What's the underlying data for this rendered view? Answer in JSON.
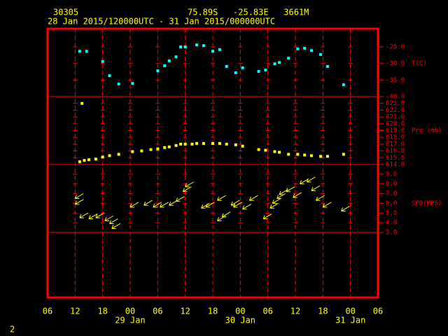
{
  "header": {
    "station": "30305",
    "location": "75.89S   -25.83E   3661M",
    "period": "28 Jan 2015/120000UTC - 31 Jan 2015/000000UTC"
  },
  "page_number": "2",
  "chart_data": [
    {
      "type": "scatter",
      "marker": "square",
      "axis_label": "T(C)",
      "color": "#00ffff",
      "x": [
        7,
        8.5,
        12,
        13.5,
        15.5,
        18.5,
        24,
        25.5,
        26.5,
        28,
        29,
        30,
        32.5,
        34,
        36,
        37.5,
        39,
        41,
        42.5,
        46,
        47.5,
        49.5,
        50.5,
        52.5,
        54.5,
        56,
        57.5,
        59.5,
        61,
        64.5
      ],
      "values": [
        -26.3,
        -26.3,
        -29.4,
        -33.7,
        -36.2,
        -36.0,
        -32.2,
        -30.7,
        -29.2,
        -28.0,
        -25.0,
        -25.0,
        -24.4,
        -24.6,
        -26.3,
        -25.8,
        -30.9,
        -32.8,
        -31.3,
        -32.4,
        -32.0,
        -30.1,
        -29.7,
        -28.4,
        -25.6,
        -25.4,
        -26.1,
        -27.3,
        -30.9,
        -36.4
      ],
      "ylim": [
        -40,
        -19.5
      ],
      "yticks": [
        {
          "value": -25,
          "label": "-25.0"
        },
        {
          "value": -30,
          "label": "-30.0"
        },
        {
          "value": -35,
          "label": "-35.0"
        },
        {
          "value": -40,
          "label": "-40.0"
        }
      ]
    },
    {
      "type": "scatter",
      "marker": "square",
      "axis_label": "Pre (mb)",
      "color": "#ffff00",
      "x": [
        7.5,
        7,
        8,
        9,
        10.5,
        12,
        13.5,
        15.5,
        18.5,
        20.5,
        22.5,
        24,
        25.5,
        26.5,
        28,
        29,
        30,
        31.5,
        32.5,
        34,
        36,
        37.5,
        39,
        41,
        42.5,
        46,
        47.5,
        49.5,
        50.5,
        52.5,
        54.5,
        56,
        57.5,
        59.5,
        61,
        64.5
      ],
      "values": [
        623.0,
        614.4,
        614.6,
        614.7,
        614.8,
        615.1,
        615.3,
        615.5,
        615.9,
        616.0,
        616.2,
        616.3,
        616.5,
        616.6,
        616.8,
        617.0,
        617.0,
        617.0,
        617.1,
        617.1,
        617.1,
        617.1,
        617.0,
        616.9,
        616.7,
        616.2,
        616.1,
        615.9,
        615.8,
        615.5,
        615.5,
        615.4,
        615.3,
        615.2,
        615.2,
        615.5
      ],
      "ylim": [
        614,
        624
      ],
      "yticks": [
        {
          "value": 623,
          "label": "623.0"
        },
        {
          "value": 622,
          "label": "622.0"
        },
        {
          "value": 621,
          "label": "621.0"
        },
        {
          "value": 620,
          "label": "620.0"
        },
        {
          "value": 619,
          "label": "619.0"
        },
        {
          "value": 618,
          "label": "618.0"
        },
        {
          "value": 617,
          "label": "617.0"
        },
        {
          "value": 616,
          "label": "616.0"
        },
        {
          "value": 615,
          "label": "615.0"
        },
        {
          "value": 614,
          "label": "614.0"
        }
      ]
    },
    {
      "type": "scatter",
      "marker": "arrow",
      "axis_label": "SPD(MPS)",
      "color": "#ffff00",
      "x": [
        6,
        6,
        7,
        9,
        10.5,
        12.5,
        13.5,
        14,
        18,
        21,
        23,
        24.5,
        26.5,
        28,
        29.5,
        30,
        33.5,
        34.5,
        37,
        37,
        38,
        40,
        40.5,
        42.5,
        44,
        47,
        48.5,
        49,
        50,
        50.5,
        52,
        53.5,
        55,
        56.5,
        57.5,
        58.5,
        60,
        64
      ],
      "values": [
        6.5,
        5.9,
        4.5,
        4.4,
        4.5,
        4.2,
        3.9,
        3.4,
        5.6,
        5.8,
        5.6,
        5.6,
        5.8,
        6.2,
        7.2,
        7.7,
        5.5,
        5.6,
        6.3,
        4.2,
        4.6,
        5.8,
        5.6,
        5.4,
        6.3,
        4.4,
        5.5,
        6.0,
        6.5,
        6.9,
        7.2,
        6.6,
        8.0,
        8.2,
        7.3,
        6.3,
        5.6,
        5.2
      ],
      "ylim": [
        3,
        10
      ],
      "yticks": [
        {
          "value": 9,
          "label": "9.0"
        },
        {
          "value": 8,
          "label": "8.0"
        },
        {
          "value": 7,
          "label": "7.0"
        },
        {
          "value": 6,
          "label": "6.0"
        },
        {
          "value": 5,
          "label": "5.0"
        },
        {
          "value": 4,
          "label": "4.0"
        },
        {
          "value": 3,
          "label": "3.0"
        }
      ],
      "xlim": [
        0,
        72
      ],
      "xticks": [
        {
          "value": 0,
          "label": "06"
        },
        {
          "value": 6,
          "label": "12"
        },
        {
          "value": 12,
          "label": "18"
        },
        {
          "value": 18,
          "label": "00"
        },
        {
          "value": 24,
          "label": "06"
        },
        {
          "value": 30,
          "label": "12"
        },
        {
          "value": 36,
          "label": "18"
        },
        {
          "value": 42,
          "label": "00"
        },
        {
          "value": 48,
          "label": "06"
        },
        {
          "value": 54,
          "label": "12"
        },
        {
          "value": 60,
          "label": "18"
        },
        {
          "value": 66,
          "label": "00"
        },
        {
          "value": 72,
          "label": "06"
        }
      ],
      "date_labels": [
        {
          "value": 18,
          "label": "29 Jan"
        },
        {
          "value": 42,
          "label": "30 Jan"
        },
        {
          "value": 66,
          "label": "31 Jan"
        }
      ],
      "grid": true
    }
  ]
}
